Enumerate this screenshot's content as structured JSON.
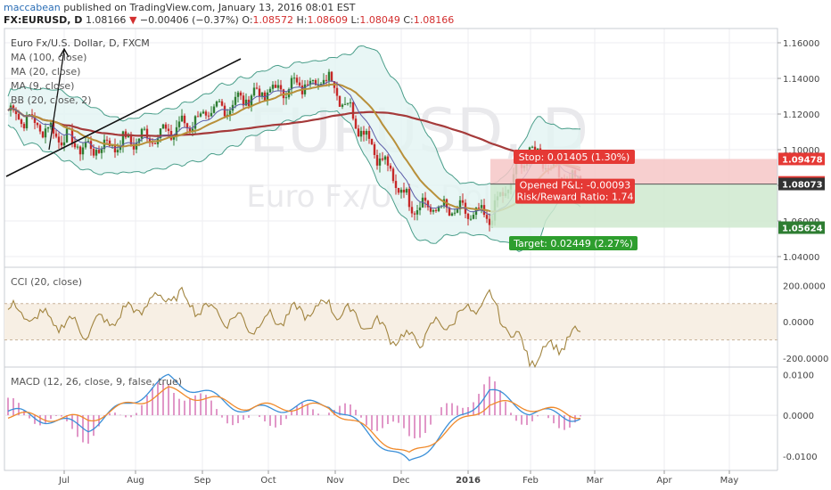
{
  "header": {
    "author": "maccabean",
    "published": "published on TradingView.com, January 13, 2016 08:01 EST",
    "symbol": "FX:EURUSD, D",
    "last": "1.08166",
    "change": "−0.00406 (−0.37%)",
    "open_label": "O:",
    "open": "1.08572",
    "high_label": "H:",
    "high": "1.08609",
    "low_label": "L:",
    "low": "1.08049",
    "close_label": "C:",
    "close": "1.08166"
  },
  "colors": {
    "up": "#2e7d32",
    "down": "#c62828",
    "ma100": "#a53a3a",
    "ma20": "#b8903a",
    "ma9": "#5c5ca8",
    "bb": "#4a9e8a",
    "bb_fill": "#e2f4f2",
    "cci": "#a1843f",
    "macd": "#3a8fd8",
    "signal": "#f08a2b",
    "hist": "#d46bb0"
  },
  "chart_data": [
    {
      "type": "line",
      "pane": "price",
      "legend": [
        "Euro Fx/U.S. Dollar, D, FXCM",
        "MA (100, close)",
        "MA (20, close)",
        "MA (9, close)",
        "BB (20, close, 2)"
      ],
      "watermark_symbol": "EURUSD, D",
      "watermark_desc": "Euro Fx/U.S. Dollar",
      "x_ticks": [
        "Jul",
        "Aug",
        "Sep",
        "Oct",
        "Nov",
        "Dec",
        "2016",
        "Feb",
        "Mar",
        "Apr",
        "May"
      ],
      "y_ticks": [
        "1.16000",
        "1.14000",
        "1.12000",
        "1.10000",
        "1.08000",
        "1.06000",
        "1.04000"
      ],
      "ylim": [
        1.034,
        1.168
      ],
      "x_days": [
        0,
        30,
        60,
        90,
        120,
        150,
        180,
        195,
        210
      ],
      "close": [
        1.122,
        1.1,
        1.11,
        1.13,
        1.14,
        1.07,
        1.062,
        1.1,
        1.083
      ],
      "price_labels": [
        {
          "text": "1.09478",
          "value": 1.09478,
          "color": "#e53935"
        },
        {
          "text": "1.08166",
          "value": 1.08166,
          "color": "#e53935"
        },
        {
          "text": "1.08073",
          "value": 1.08073,
          "color": "#333333"
        },
        {
          "text": "1.05624",
          "value": 1.05624,
          "color": "#2e7d32"
        }
      ],
      "position": {
        "entry": 1.0807,
        "stop": 1.09478,
        "target": 1.05624,
        "stop_text": "Stop: 0.01405 (1.30%)",
        "pl_text": "Opened P&L: -0.00093",
        "rr_text": "Risk/Reward Ratio: 1.74",
        "target_text": "Target: 0.02449 (2.27%)"
      }
    },
    {
      "type": "line",
      "pane": "cci",
      "legend": "CCI (20, close)",
      "y_ticks": [
        "200.0000",
        "0.0000",
        "-200.0000"
      ],
      "ylim": [
        -250,
        300
      ],
      "band": [
        -100,
        100
      ],
      "x_days": [
        0,
        30,
        60,
        90,
        120,
        150,
        180,
        195,
        210
      ],
      "values": [
        60,
        -40,
        150,
        -20,
        90,
        -110,
        120,
        -200,
        -90
      ]
    },
    {
      "type": "line",
      "pane": "macd",
      "legend": "MACD (12, 26, close, 9, false, true)",
      "y_ticks": [
        "0.0100",
        "0.0000",
        "-0.0100"
      ],
      "ylim": [
        -0.0135,
        0.0118
      ],
      "x_days": [
        0,
        30,
        60,
        90,
        120,
        150,
        180,
        195,
        210
      ],
      "macd": [
        0.001,
        -0.003,
        0.009,
        0.001,
        0.003,
        -0.012,
        0.006,
        0.001,
        -0.0003
      ],
      "signal": [
        0.0,
        -0.001,
        0.006,
        0.002,
        0.002,
        -0.01,
        0.003,
        0.002,
        0.0002
      ]
    }
  ]
}
